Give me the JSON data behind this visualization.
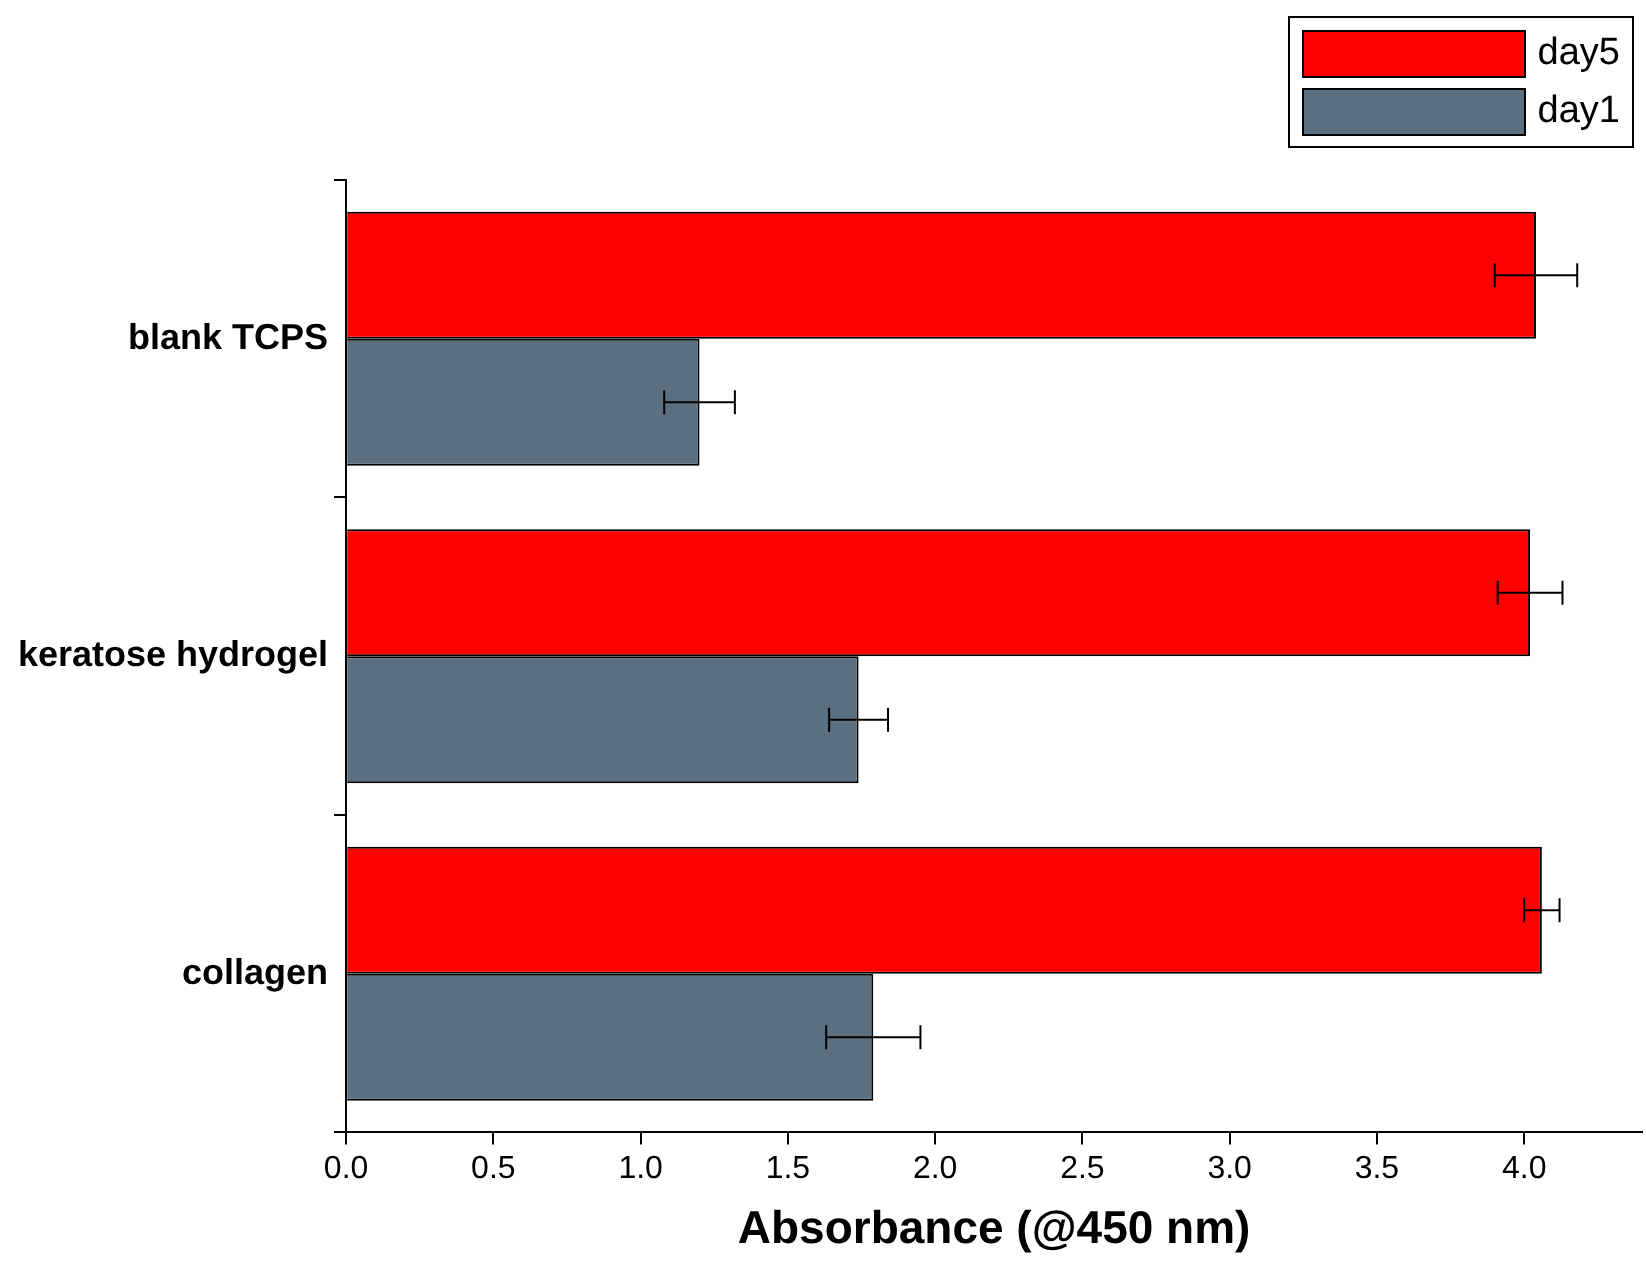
{
  "chart_data": {
    "type": "bar",
    "orientation": "horizontal",
    "xlabel": "Absorbance (@450 nm)",
    "categories": [
      "blank TCPS",
      "keratose hydrogel",
      "collagen"
    ],
    "series": [
      {
        "name": "day5",
        "color": "#ff0000",
        "values": [
          4.04,
          4.02,
          4.06
        ],
        "errors": [
          0.14,
          0.11,
          0.06
        ]
      },
      {
        "name": "day1",
        "color": "#5a7080",
        "values": [
          1.2,
          1.74,
          1.79
        ],
        "errors": [
          0.12,
          0.1,
          0.16
        ]
      }
    ],
    "xlim": [
      0,
      4.4
    ],
    "xticks": [
      {
        "value": 0,
        "label": "0.0"
      },
      {
        "value": 0.5,
        "label": "0.5"
      },
      {
        "value": 1,
        "label": "1.0"
      },
      {
        "value": 1.5,
        "label": "1.5"
      },
      {
        "value": 2,
        "label": "2.0"
      },
      {
        "value": 2.5,
        "label": "2.5"
      },
      {
        "value": 3,
        "label": "3.0"
      },
      {
        "value": 3.5,
        "label": "3.5"
      },
      {
        "value": 4,
        "label": "4.0"
      }
    ],
    "legend": "top right",
    "grid": false
  }
}
